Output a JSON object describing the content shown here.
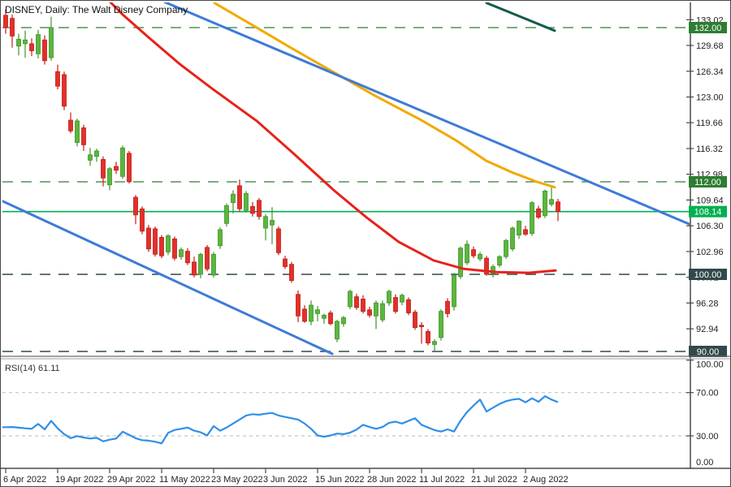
{
  "window": {
    "title": "DISNEY, Daily: The Walt Disney Company"
  },
  "price_axis": {
    "ticks": [
      {
        "label": "133.02",
        "price": 133.02
      },
      {
        "label": "129.68",
        "price": 129.68
      },
      {
        "label": "126.34",
        "price": 126.34
      },
      {
        "label": "123.00",
        "price": 123.0
      },
      {
        "label": "119.66",
        "price": 119.66
      },
      {
        "label": "116.32",
        "price": 116.32
      },
      {
        "label": "112.98",
        "price": 112.98
      },
      {
        "label": "109.64",
        "price": 109.64
      },
      {
        "label": "106.30",
        "price": 106.3
      },
      {
        "label": "102.96",
        "price": 102.96
      },
      {
        "label": "99.62",
        "price": 99.62
      },
      {
        "label": "96.28",
        "price": 96.28
      },
      {
        "label": "92.94",
        "price": 92.94
      }
    ],
    "badges": [
      {
        "label": "132.00",
        "price": 132.0,
        "bg": "#2e7d32"
      },
      {
        "label": "112.00",
        "price": 112.0,
        "bg": "#2e7d32"
      },
      {
        "label": "108.14",
        "price": 108.14,
        "bg": "#00b050"
      },
      {
        "label": "100.00",
        "price": 100.0,
        "bg": "#31494b"
      },
      {
        "label": "90.00",
        "price": 90.0,
        "bg": "#31494b"
      }
    ]
  },
  "time_axis": {
    "labels": [
      "6 Apr 2022",
      "19 Apr 2022",
      "29 Apr 2022",
      "11 May 2022",
      "23 May 2022",
      "3 Jun 2022",
      "15 Jun 2022",
      "28 Jun 2022",
      "11 Jul 2022",
      "21 Jul 2022",
      "2 Aug 2022"
    ],
    "candles_per_label": 8
  },
  "indicator_panel": {
    "label": "RSI(14) 61.11",
    "ticks": [
      {
        "label": "100.00",
        "value": 100
      },
      {
        "label": "70.00",
        "value": 70
      },
      {
        "label": "30.00",
        "value": 30
      },
      {
        "label": "0.00",
        "value": 0
      }
    ],
    "level_lines": [
      70,
      30
    ]
  },
  "chart_data": {
    "type": "candlestick",
    "symbol": "DISNEY",
    "timeframe": "Daily",
    "title": "DISNEY, Daily: The Walt Disney Company",
    "ylim": [
      87.6,
      135.4
    ],
    "grid": false,
    "legend_position": "none",
    "candles": [
      [
        133.6,
        134.4,
        131.2,
        132.0
      ],
      [
        133.2,
        133.7,
        129.4,
        130.9
      ],
      [
        129.6,
        131.2,
        128.4,
        130.5
      ],
      [
        129.9,
        131.6,
        128.1,
        130.4
      ],
      [
        129.9,
        130.6,
        128.3,
        129.0
      ],
      [
        128.6,
        131.7,
        128.0,
        131.1
      ],
      [
        130.4,
        131.0,
        127.2,
        127.7
      ],
      [
        128.1,
        133.4,
        127.7,
        132.0
      ],
      [
        126.3,
        127.2,
        124.0,
        124.4
      ],
      [
        125.9,
        126.3,
        121.3,
        121.8
      ],
      [
        120.0,
        121.0,
        118.3,
        118.6
      ],
      [
        117.1,
        120.2,
        116.6,
        119.9
      ],
      [
        119.0,
        119.4,
        116.0,
        116.8
      ],
      [
        114.8,
        116.4,
        114.1,
        115.5
      ],
      [
        115.3,
        116.3,
        114.6,
        116.0
      ],
      [
        114.9,
        115.3,
        111.4,
        112.5
      ],
      [
        111.6,
        113.9,
        110.9,
        113.7
      ],
      [
        114.0,
        114.6,
        113.0,
        113.5
      ],
      [
        112.7,
        116.7,
        112.4,
        116.4
      ],
      [
        115.7,
        116.0,
        111.8,
        112.0
      ],
      [
        110.0,
        110.3,
        106.5,
        107.7
      ],
      [
        108.5,
        108.8,
        105.2,
        105.6
      ],
      [
        106.0,
        106.4,
        102.9,
        103.3
      ],
      [
        105.9,
        106.2,
        102.3,
        102.6
      ],
      [
        104.8,
        105.1,
        102.1,
        102.4
      ],
      [
        102.9,
        105.2,
        102.5,
        105.0
      ],
      [
        104.6,
        104.9,
        101.8,
        102.1
      ],
      [
        102.3,
        103.5,
        101.9,
        103.2
      ],
      [
        103.0,
        103.4,
        101.2,
        101.5
      ],
      [
        101.6,
        102.3,
        99.6,
        99.9
      ],
      [
        100.0,
        102.8,
        99.5,
        102.6
      ],
      [
        103.5,
        103.8,
        100.4,
        100.7
      ],
      [
        99.9,
        102.9,
        99.6,
        102.6
      ],
      [
        103.7,
        106.1,
        103.3,
        105.8
      ],
      [
        106.6,
        109.2,
        106.2,
        108.9
      ],
      [
        109.3,
        110.9,
        107.9,
        110.4
      ],
      [
        111.5,
        112.3,
        108.1,
        108.5
      ],
      [
        108.3,
        110.8,
        108.0,
        110.5
      ],
      [
        108.8,
        109.4,
        107.5,
        107.9
      ],
      [
        109.6,
        109.9,
        107.1,
        107.5
      ],
      [
        106.0,
        107.8,
        104.4,
        107.5
      ],
      [
        106.4,
        108.7,
        103.9,
        107.0
      ],
      [
        105.9,
        106.2,
        102.5,
        102.8
      ],
      [
        102.0,
        102.4,
        100.7,
        101.0
      ],
      [
        101.3,
        101.6,
        98.9,
        99.2
      ],
      [
        97.4,
        97.9,
        93.8,
        94.6
      ],
      [
        95.5,
        96.0,
        93.7,
        93.9
      ],
      [
        93.9,
        96.6,
        93.4,
        96.0
      ],
      [
        94.9,
        95.9,
        93.9,
        95.4
      ],
      [
        94.3,
        94.9,
        93.6,
        94.7
      ],
      [
        95.0,
        95.3,
        93.4,
        93.6
      ],
      [
        91.6,
        94.1,
        91.2,
        93.9
      ],
      [
        93.6,
        94.6,
        93.2,
        94.4
      ],
      [
        95.8,
        98.0,
        95.5,
        97.8
      ],
      [
        97.1,
        97.5,
        95.4,
        95.7
      ],
      [
        96.8,
        97.3,
        94.9,
        95.2
      ],
      [
        95.4,
        95.8,
        94.4,
        94.7
      ],
      [
        94.6,
        96.6,
        92.9,
        96.3
      ],
      [
        94.1,
        96.6,
        93.8,
        96.2
      ],
      [
        96.3,
        98.0,
        95.9,
        97.8
      ],
      [
        97.0,
        97.4,
        94.9,
        95.2
      ],
      [
        96.4,
        97.5,
        96.0,
        97.3
      ],
      [
        96.7,
        97.0,
        94.7,
        95.0
      ],
      [
        95.1,
        95.4,
        92.8,
        93.1
      ],
      [
        93.4,
        93.8,
        91.0,
        93.2
      ],
      [
        92.6,
        92.9,
        90.8,
        91.1
      ],
      [
        90.9,
        91.6,
        89.9,
        91.3
      ],
      [
        91.8,
        95.5,
        91.4,
        95.2
      ],
      [
        96.5,
        96.9,
        94.4,
        94.9
      ],
      [
        95.8,
        100.2,
        95.3,
        99.9
      ],
      [
        99.7,
        103.6,
        99.4,
        103.4
      ],
      [
        101.5,
        104.4,
        101.2,
        103.9
      ],
      [
        103.2,
        103.6,
        102.1,
        102.4
      ],
      [
        102.0,
        102.9,
        101.7,
        102.6
      ],
      [
        102.1,
        102.4,
        99.8,
        100.0
      ],
      [
        100.1,
        101.3,
        99.6,
        101.0
      ],
      [
        101.2,
        102.5,
        100.9,
        102.3
      ],
      [
        102.3,
        104.6,
        102.0,
        104.4
      ],
      [
        103.3,
        106.2,
        103.0,
        106.0
      ],
      [
        105.1,
        107.0,
        104.6,
        106.9
      ],
      [
        105.8,
        106.3,
        105.0,
        105.2
      ],
      [
        105.3,
        109.5,
        105.0,
        109.3
      ],
      [
        108.5,
        108.9,
        107.2,
        107.4
      ],
      [
        107.6,
        111.0,
        107.3,
        110.8
      ],
      [
        109.1,
        111.4,
        108.8,
        109.7
      ],
      [
        109.4,
        109.8,
        106.9,
        108.14
      ]
    ],
    "levels": [
      {
        "price": 132.0,
        "color": "#2e7d32",
        "style": "dash"
      },
      {
        "price": 112.0,
        "color": "#2e7d32",
        "style": "dash"
      },
      {
        "price": 108.14,
        "color": "#00b050",
        "style": "solid"
      },
      {
        "price": 100.0,
        "color": "#31494b",
        "style": "dash"
      },
      {
        "price": 90.0,
        "color": "#31494b",
        "style": "dash"
      }
    ],
    "overlays": [
      {
        "name": "ma-fast-red",
        "color": "#e8221a",
        "width": 3,
        "points": [
          [
            133,
            135.5
          ],
          [
            150,
            133.7
          ],
          [
            180,
            130.9
          ],
          [
            220,
            127.3
          ],
          [
            260,
            124.1
          ],
          [
            315,
            119.9
          ],
          [
            360,
            115.7
          ],
          [
            410,
            110.9
          ],
          [
            450,
            107.4
          ],
          [
            490,
            104.2
          ],
          [
            533,
            101.8
          ],
          [
            570,
            100.7
          ],
          [
            610,
            100.3
          ],
          [
            650,
            100.2
          ],
          [
            683,
            100.5
          ]
        ]
      },
      {
        "name": "ma-slow-orange",
        "color": "#f2a900",
        "width": 3,
        "points": [
          [
            263,
            135.2
          ],
          [
            310,
            132.3
          ],
          [
            360,
            129.2
          ],
          [
            410,
            126.2
          ],
          [
            460,
            123.2
          ],
          [
            516,
            120.1
          ],
          [
            560,
            117.4
          ],
          [
            598,
            114.7
          ],
          [
            630,
            113.2
          ],
          [
            660,
            112.0
          ],
          [
            682,
            111.3
          ]
        ]
      },
      {
        "name": "trendline-upper-blue",
        "color": "#3e7bd6",
        "width": 3,
        "points": [
          [
            202,
            135.3
          ],
          [
            848,
            106.5
          ]
        ]
      },
      {
        "name": "trendline-lower-blue",
        "color": "#3e7bd6",
        "width": 3,
        "points": [
          [
            0,
            109.6
          ],
          [
            408,
            89.7
          ]
        ]
      },
      {
        "name": "trendline-dark-green",
        "color": "#145c4c",
        "width": 3,
        "points": [
          [
            598,
            135.2
          ],
          [
            682,
            131.6
          ]
        ]
      }
    ],
    "rsi": {
      "period": 14,
      "last": 61.11,
      "ylim": [
        0,
        100
      ],
      "values": [
        38.0,
        38.2,
        37.6,
        37.0,
        36.5,
        41.0,
        36.0,
        43.9,
        37.0,
        31.6,
        27.9,
        29.8,
        28.5,
        27.5,
        28.2,
        25.0,
        26.5,
        27.5,
        33.8,
        31.0,
        27.8,
        26.0,
        25.6,
        24.6,
        23.0,
        32.8,
        35.5,
        36.5,
        37.7,
        34.8,
        33.3,
        30.4,
        39.0,
        34.8,
        37.7,
        41.4,
        45.1,
        48.8,
        50.0,
        49.5,
        50.5,
        51.2,
        48.8,
        47.5,
        46.3,
        45.1,
        41.4,
        36.5,
        30.4,
        29.2,
        30.4,
        32.1,
        31.6,
        33.0,
        35.8,
        40.2,
        38.2,
        36.5,
        38.2,
        42.1,
        43.1,
        41.4,
        43.9,
        46.3,
        40.2,
        37.7,
        35.3,
        34.0,
        36.0,
        34.0,
        44.0,
        52.0,
        58.0,
        63.5,
        52.5,
        56.0,
        59.5,
        62.0,
        63.5,
        64.2,
        61.0,
        64.7,
        61.5,
        66.7,
        63.5,
        61.11
      ]
    }
  },
  "colors": {
    "bull_fill": "#5cb63e",
    "bull_stroke": "#3e9427",
    "bear_fill": "#e3302a",
    "bear_stroke": "#bf1e18",
    "rsi_line": "#2f8fe8",
    "rsi_level": "#c4c4c4",
    "axis_line": "#4a4a4a",
    "axis_text": "#222222",
    "background": "#ffffff"
  }
}
